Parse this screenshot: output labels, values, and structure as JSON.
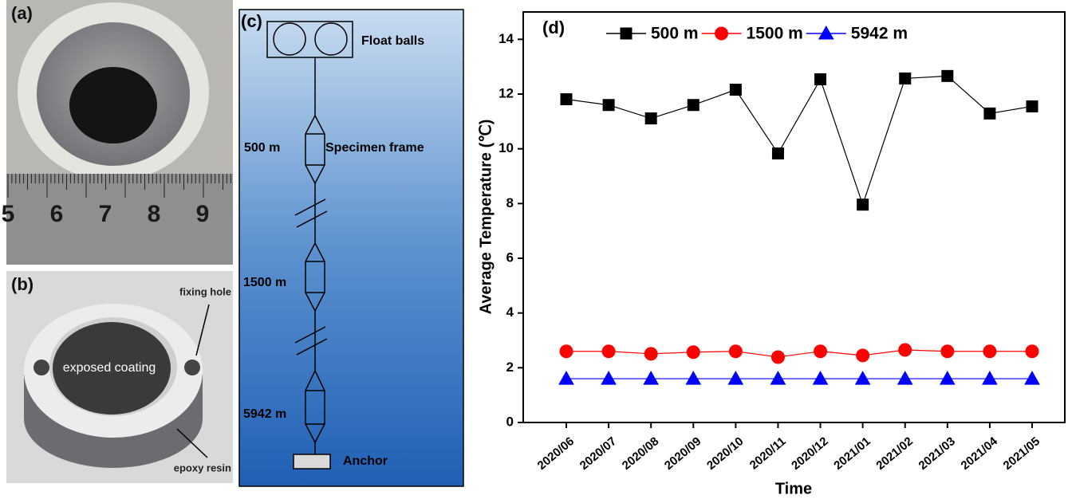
{
  "panels": {
    "a": {
      "label": "(a)",
      "ruler_numbers": [
        "5",
        "6",
        "7",
        "8",
        "9"
      ]
    },
    "b": {
      "label": "(b)",
      "annotations": [
        "fixing hole",
        "exposed coating",
        "epoxy resin"
      ]
    },
    "c": {
      "label": "(c)",
      "labels": [
        "Float balls",
        "500 m",
        "Specimen frame",
        "1500 m",
        "5942 m",
        "Anchor"
      ]
    }
  },
  "chart_data": {
    "type": "line",
    "panel_label": "(d)",
    "x_label": "Time",
    "y_label": "Average Temperature (℃)",
    "categories": [
      "2020/06",
      "2020/07",
      "2020/08",
      "2020/09",
      "2020/10",
      "2020/11",
      "2020/12",
      "2021/01",
      "2021/02",
      "2021/03",
      "2021/04",
      "2021/05"
    ],
    "series": [
      {
        "name": "500 m",
        "color": "#000000",
        "marker": "square",
        "values": [
          11.81,
          11.6,
          11.11,
          11.6,
          12.16,
          9.83,
          12.54,
          7.96,
          12.57,
          12.66,
          11.29,
          11.55
        ]
      },
      {
        "name": "1500 m",
        "color": "#ff0000",
        "marker": "circle",
        "values": [
          2.6,
          2.6,
          2.51,
          2.57,
          2.6,
          2.39,
          2.6,
          2.45,
          2.65,
          2.6,
          2.6,
          2.6
        ]
      },
      {
        "name": "5942 m",
        "color": "#0000ff",
        "marker": "triangle",
        "values": [
          1.6,
          1.6,
          1.6,
          1.6,
          1.6,
          1.6,
          1.6,
          1.6,
          1.6,
          1.6,
          1.6,
          1.6
        ]
      }
    ],
    "ylim": [
      0,
      15
    ],
    "yticks": [
      0,
      2,
      4,
      6,
      8,
      10,
      12,
      14
    ]
  }
}
